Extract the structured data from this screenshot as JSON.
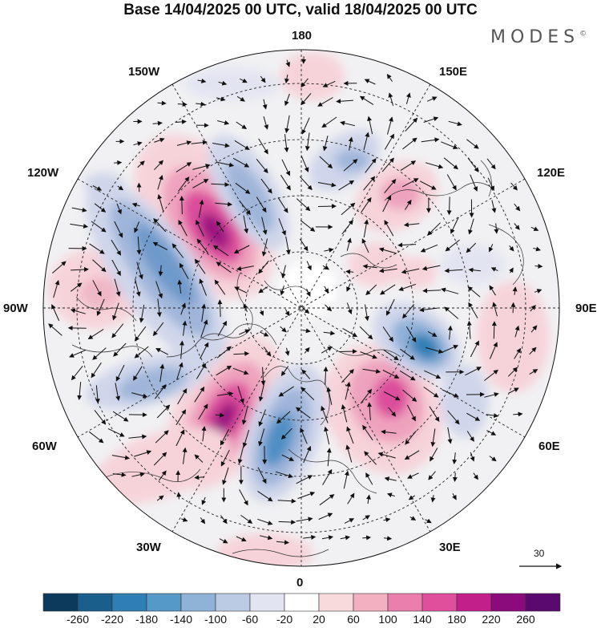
{
  "title": "Base 14/04/2025 00 UTC, valid 18/04/2025 00 UTC",
  "brand": "MODES",
  "longitude_labels": {
    "top": "180",
    "bottom": "0",
    "left": "90W",
    "right": "90E",
    "upper_left_1": "150W",
    "upper_left_2": "120W",
    "lower_left_1": "60W",
    "lower_left_2": "30W",
    "upper_right_1": "150E",
    "upper_right_2": "120E",
    "lower_right_1": "60E",
    "lower_right_2": "30E"
  },
  "reference_vector": {
    "label": "30"
  },
  "colorbar": {
    "labels": [
      "-260",
      "-220",
      "-180",
      "-140",
      "-100",
      "-60",
      "-20",
      "20",
      "60",
      "100",
      "140",
      "180",
      "220",
      "260"
    ],
    "colors": [
      "#0b3a5c",
      "#1a5e8c",
      "#2f7fb5",
      "#5599c8",
      "#8fb3d6",
      "#bccbe4",
      "#e2e4f1",
      "#ffffff",
      "#f8dadb",
      "#f2b1c0",
      "#ea7fad",
      "#e04f9c",
      "#c21f8a",
      "#8b0a7c",
      "#5a0a6e"
    ]
  },
  "anomaly_centers": [
    {
      "sign": "positive",
      "level": "220"
    },
    {
      "sign": "positive",
      "level": "220"
    },
    {
      "sign": "positive",
      "level": "180"
    },
    {
      "sign": "positive",
      "level": "140"
    },
    {
      "sign": "positive",
      "level": "100"
    },
    {
      "sign": "negative",
      "level": "-180"
    },
    {
      "sign": "negative",
      "level": "-140"
    },
    {
      "sign": "negative",
      "level": "-140"
    },
    {
      "sign": "negative",
      "level": "-140"
    },
    {
      "sign": "negative",
      "level": "-100"
    }
  ]
}
